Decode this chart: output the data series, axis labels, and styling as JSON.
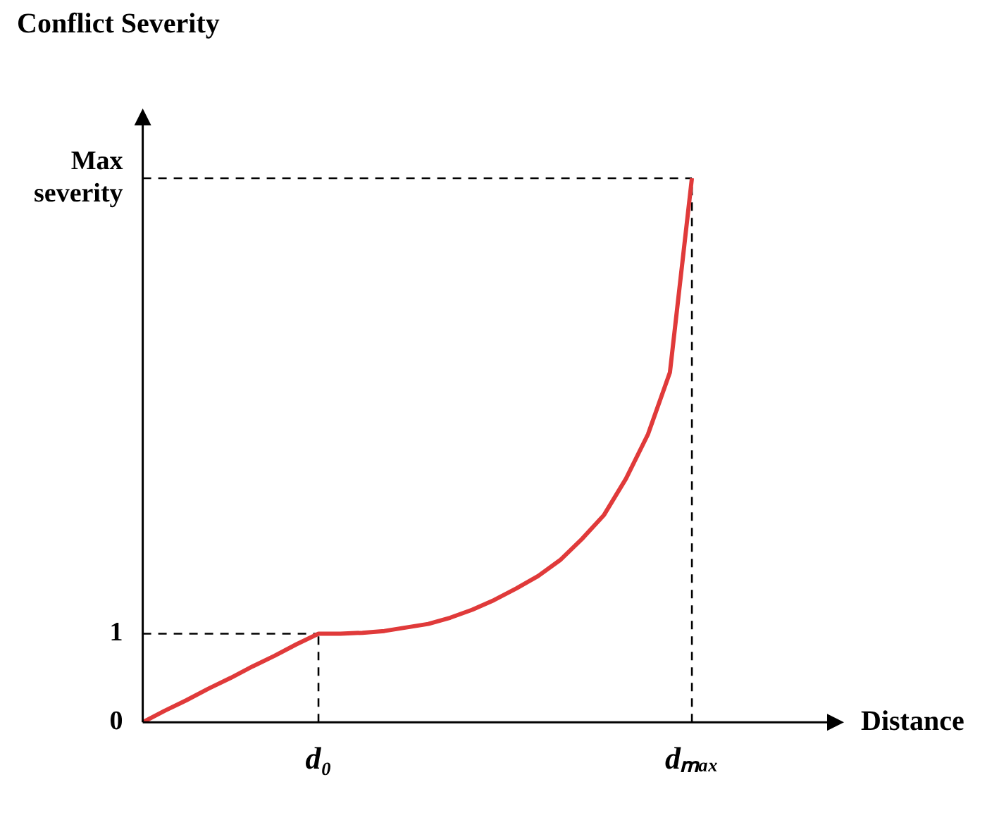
{
  "chart_data": {
    "type": "line",
    "ylabel": "Conflict Severity",
    "xlabel": "Distance",
    "categories": [
      null,
      null,
      null,
      null,
      null,
      null,
      null,
      null,
      "d₀",
      null,
      null,
      null,
      null,
      null,
      null,
      null,
      null,
      null,
      null,
      null,
      null,
      null,
      null,
      null,
      null,
      "dₘₐₓ",
      null,
      null,
      null,
      null,
      null
    ],
    "series": [
      {
        "color": "#e03a3a",
        "values": [
          0,
          0.13,
          0.25,
          0.38,
          0.5,
          0.63,
          0.75,
          0.88,
          1,
          1.0,
          1.01,
          1.03,
          1.07,
          1.11,
          1.18,
          1.27,
          1.38,
          1.51,
          1.65,
          1.83,
          2.07,
          2.34,
          2.75,
          3.25,
          3.95,
          6.14,
          null,
          null,
          null,
          null,
          null
        ]
      }
    ],
    "ylim": [
      0,
      6.8
    ],
    "yticks": [
      0,
      1,
      {
        "value": 6.14,
        "label": "Max severity"
      }
    ],
    "ref_lines": [
      {
        "axis": "y",
        "value": 1,
        "line_style": "dashed",
        "color": "#000000"
      },
      {
        "axis": "x",
        "value": "d₀",
        "line_style": "dashed",
        "color": "#000000"
      },
      {
        "axis": "y",
        "value": 6.14,
        "line_style": "dashed",
        "color": "#000000"
      },
      {
        "axis": "x",
        "value": "dₘₐₓ",
        "line_style": "dashed",
        "color": "#000000"
      }
    ],
    "grid": false,
    "legend": false,
    "marker": "none",
    "line_style": "solid"
  }
}
